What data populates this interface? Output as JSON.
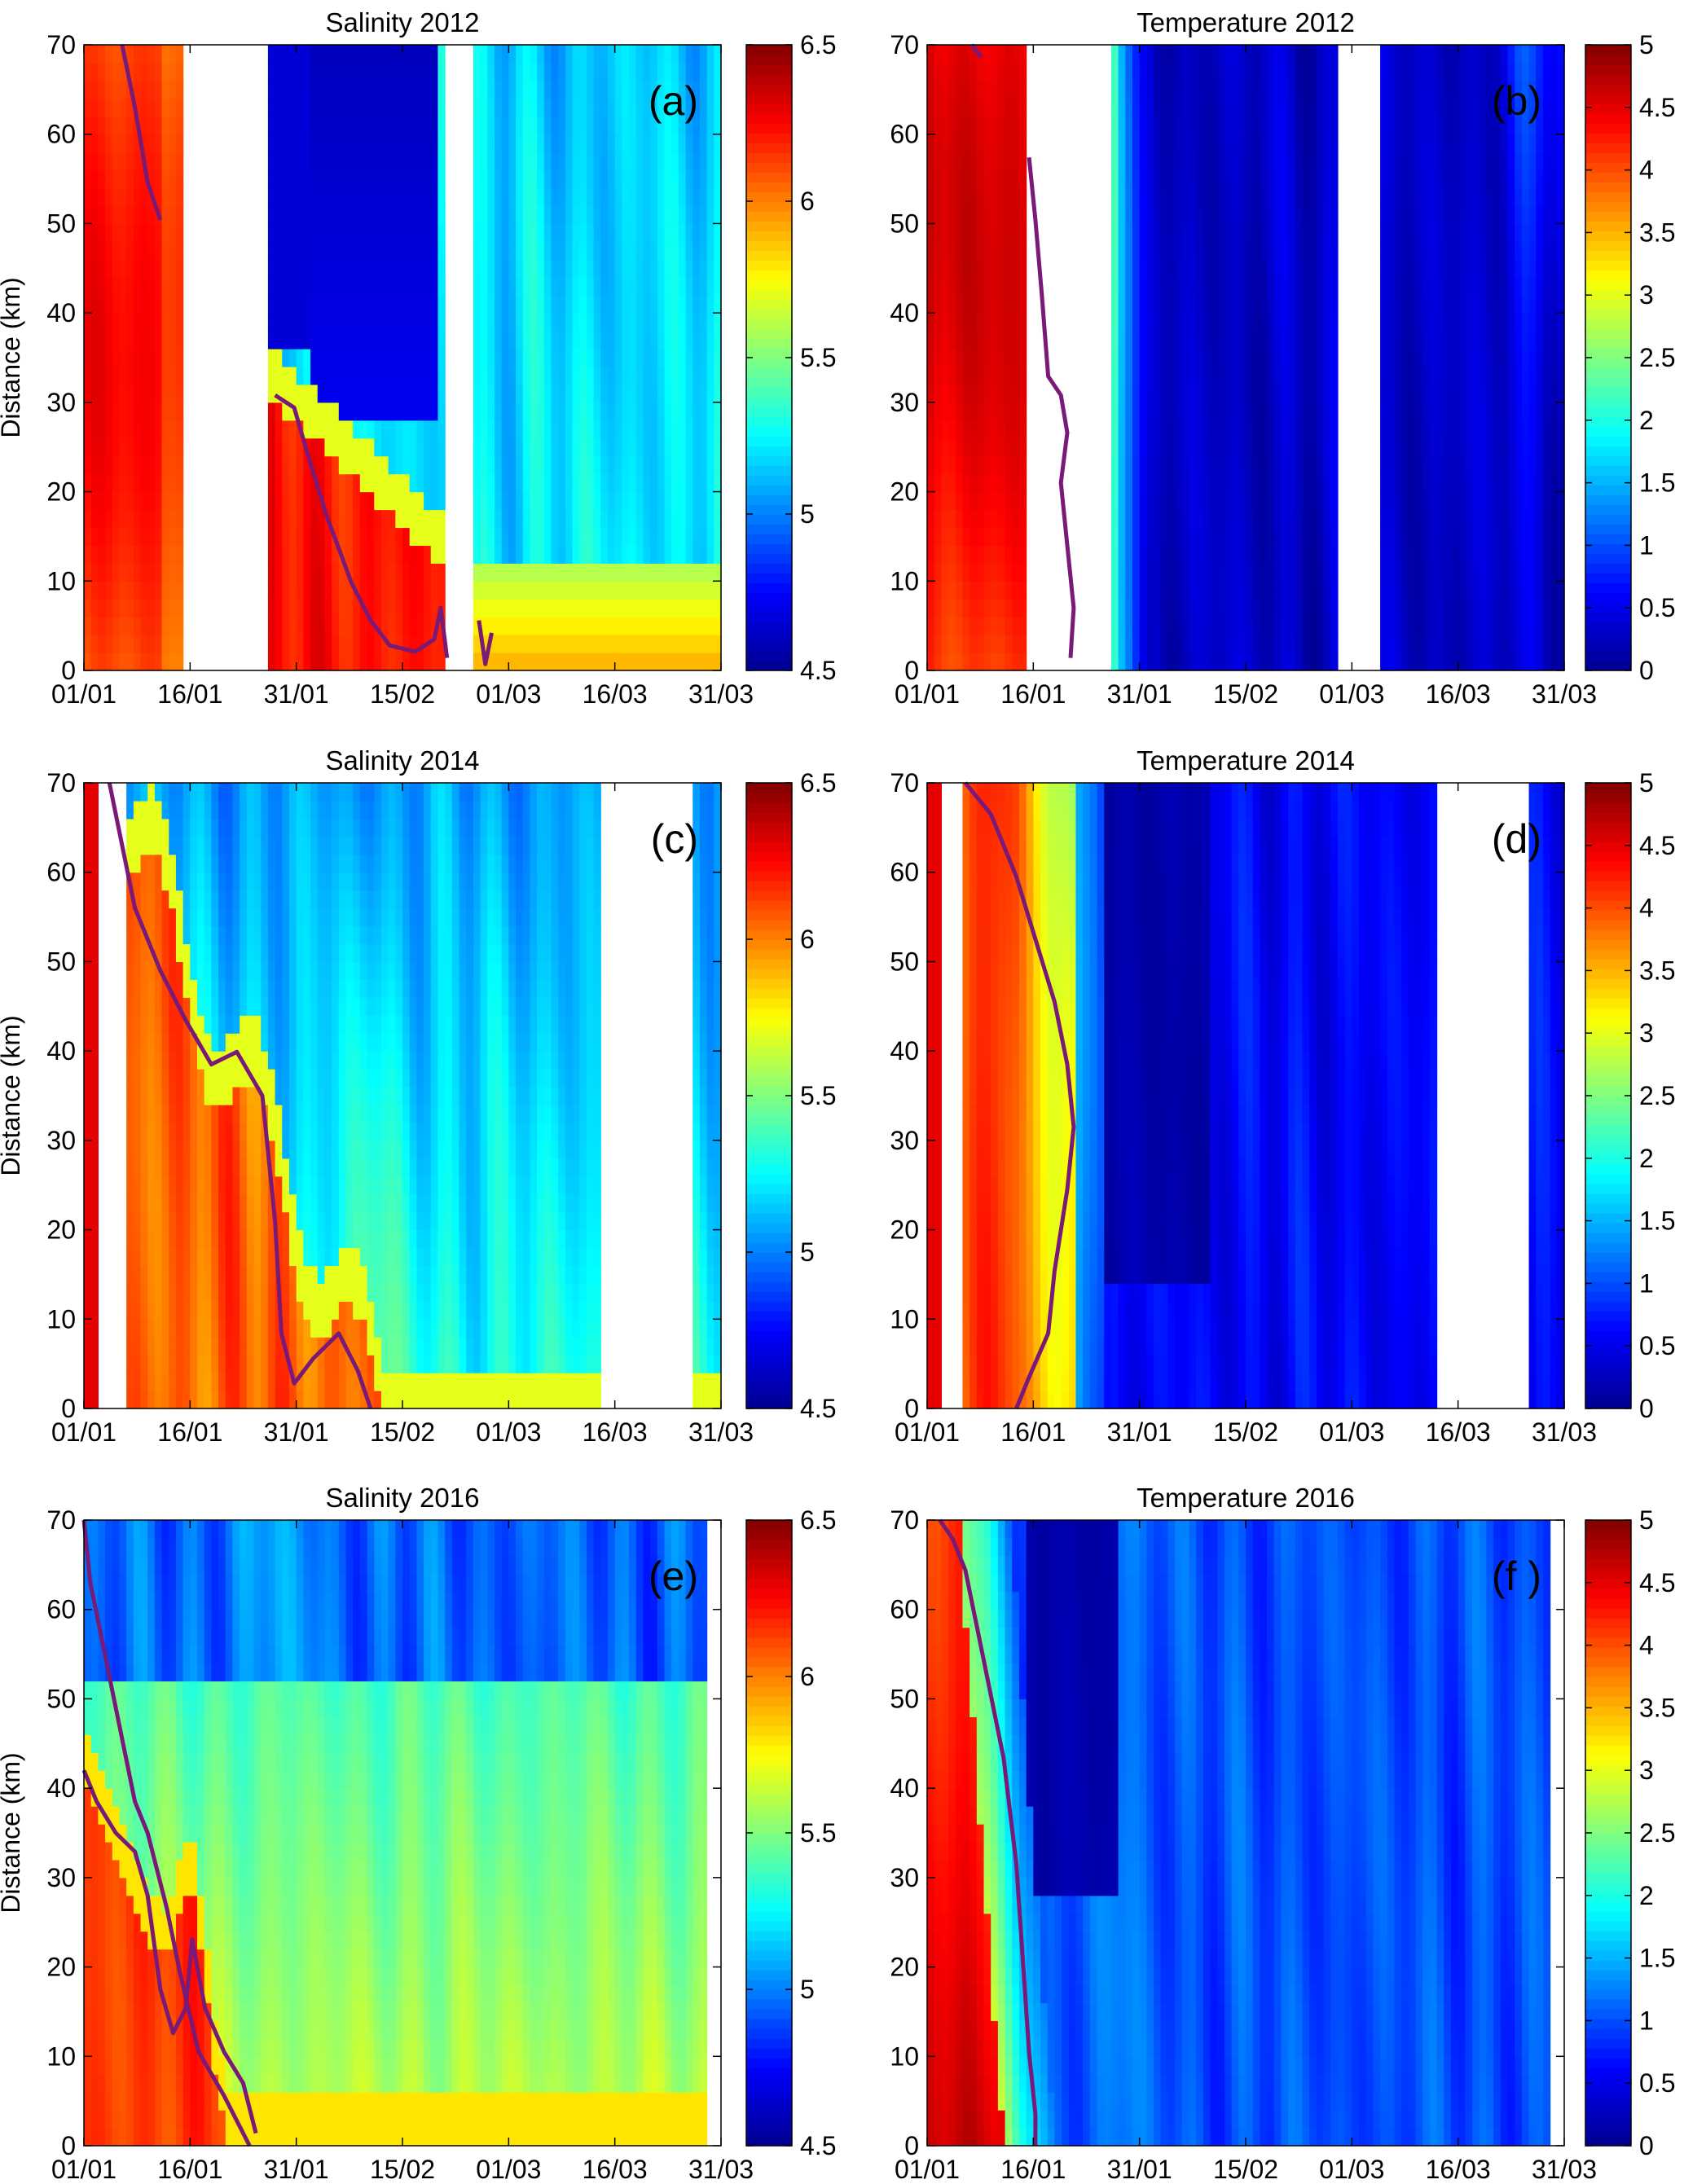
{
  "colormap": [
    "#00008f",
    "#0000ff",
    "#0080ff",
    "#00ffff",
    "#80ff80",
    "#ffff00",
    "#ff8000",
    "#ff0000",
    "#800000"
  ],
  "contour_color": "#7a1a78",
  "chart_data": [
    {
      "id": "a",
      "type": "heatmap",
      "title": "Salinity 2012",
      "panel_label": "(a)",
      "ylabel": "Distance (km)",
      "xlabel": "",
      "x_ticks": [
        "01/01",
        "16/01",
        "31/01",
        "15/02",
        "01/03",
        "16/03",
        "31/03"
      ],
      "y_ticks": [
        "0",
        "10",
        "20",
        "30",
        "40",
        "50",
        "60",
        "70"
      ],
      "ylim": [
        0,
        70
      ],
      "colorbar": {
        "range": [
          4.5,
          6.5
        ],
        "ticks": [
          "4.5",
          "5",
          "5.5",
          "6",
          "6.5"
        ]
      },
      "data_gaps_days": [
        [
          14,
          26
        ],
        [
          51,
          55
        ]
      ],
      "approx_pattern": "High salinity (6.1-6.5) near river mouth early January and late January to mid February; low (4.5-5.2) upstream; contour marks intrusion front"
    },
    {
      "id": "b",
      "type": "heatmap",
      "title": "Temperature 2012",
      "panel_label": "(b)",
      "ylabel": "",
      "xlabel": "",
      "x_ticks": [
        "01/01",
        "16/01",
        "31/01",
        "15/02",
        "01/03",
        "16/03",
        "31/03"
      ],
      "y_ticks": [
        "0",
        "10",
        "20",
        "30",
        "40",
        "50",
        "60",
        "70"
      ],
      "ylim": [
        0,
        70
      ],
      "colorbar": {
        "range": [
          0,
          5
        ],
        "ticks": [
          "0",
          "0.5",
          "1",
          "1.5",
          "2",
          "2.5",
          "3",
          "3.5",
          "4",
          "4.5",
          "5"
        ]
      },
      "data_gaps_days": [
        [
          14,
          26
        ],
        [
          58,
          64
        ]
      ],
      "approx_pattern": "Warm (4-5) early January, sharp cooling after late January to near 0"
    },
    {
      "id": "c",
      "type": "heatmap",
      "title": "Salinity 2014",
      "panel_label": "(c)",
      "ylabel": "Distance (km)",
      "xlabel": "",
      "x_ticks": [
        "01/01",
        "16/01",
        "31/01",
        "15/02",
        "01/03",
        "16/03",
        "31/03"
      ],
      "y_ticks": [
        "0",
        "10",
        "20",
        "30",
        "40",
        "50",
        "60",
        "70"
      ],
      "ylim": [
        0,
        70
      ],
      "colorbar": {
        "range": [
          4.5,
          6.5
        ],
        "ticks": [
          "4.5",
          "5",
          "5.5",
          "6",
          "6.5"
        ]
      },
      "data_gaps_days": [
        [
          2,
          6
        ],
        [
          73,
          86
        ]
      ],
      "approx_pattern": "High salinity near mouth until early February, front retreats downstream"
    },
    {
      "id": "d",
      "type": "heatmap",
      "title": "Temperature 2014",
      "panel_label": "(d)",
      "ylabel": "",
      "xlabel": "",
      "x_ticks": [
        "01/01",
        "16/01",
        "31/01",
        "15/02",
        "01/03",
        "16/03",
        "31/03"
      ],
      "y_ticks": [
        "0",
        "10",
        "20",
        "30",
        "40",
        "50",
        "60",
        "70"
      ],
      "ylim": [
        0,
        70
      ],
      "colorbar": {
        "range": [
          0,
          5
        ],
        "ticks": [
          "0",
          "0.5",
          "1",
          "1.5",
          "2",
          "2.5",
          "3",
          "3.5",
          "4",
          "4.5",
          "5"
        ]
      },
      "data_gaps_days": [
        [
          2,
          5
        ],
        [
          72,
          85
        ]
      ],
      "approx_pattern": "Warm band in first two weeks of January, cold (0-1) from late January on"
    },
    {
      "id": "e",
      "type": "heatmap",
      "title": "Salinity 2016",
      "panel_label": "(e)",
      "ylabel": "Distance (km)",
      "xlabel": "",
      "x_ticks": [
        "01/01",
        "16/01",
        "31/01",
        "15/02",
        "01/03",
        "16/03",
        "31/03"
      ],
      "y_ticks": [
        "0",
        "10",
        "20",
        "30",
        "40",
        "50",
        "60",
        "70"
      ],
      "ylim": [
        0,
        70
      ],
      "colorbar": {
        "range": [
          4.5,
          6.5
        ],
        "ticks": [
          "4.5",
          "5",
          "5.5",
          "6",
          "6.5"
        ]
      },
      "data_gaps_days": [
        [
          88,
          90
        ]
      ],
      "approx_pattern": "High salinity near mouth in January, moderate (5.5-6) from February onward near mouth"
    },
    {
      "id": "f",
      "type": "heatmap",
      "title": "Temperature 2016",
      "panel_label": "(f )",
      "ylabel": "",
      "xlabel": "",
      "x_ticks": [
        "01/01",
        "16/01",
        "31/01",
        "15/02",
        "01/03",
        "16/03",
        "31/03"
      ],
      "y_ticks": [
        "0",
        "10",
        "20",
        "30",
        "40",
        "50",
        "60",
        "70"
      ],
      "ylim": [
        0,
        70
      ],
      "colorbar": {
        "range": [
          0,
          5
        ],
        "ticks": [
          "0",
          "0.5",
          "1",
          "1.5",
          "2",
          "2.5",
          "3",
          "3.5",
          "4",
          "4.5",
          "5"
        ]
      },
      "data_gaps_days": [
        [
          88,
          90
        ]
      ],
      "approx_pattern": "Warm (3-5) first two weeks of January, then cold (0.3-1.5)"
    }
  ]
}
